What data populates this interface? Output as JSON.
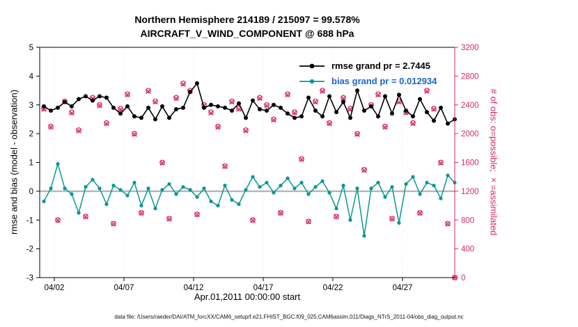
{
  "header": {
    "title_line1": "Northern Hemisphere 214189 / 215097 = 99.578%",
    "title_line2": "AIRCRAFT_V_WIND_COMPONENT @ 688 hPa"
  },
  "legend": [
    {
      "label": "rmse grand pr = 2.7445",
      "line_color": "#000000",
      "text_color": "#000000"
    },
    {
      "label": "bias grand pr = 0.012934",
      "line_color": "#0a9696",
      "text_color": "#1a66cc"
    }
  ],
  "footer": {
    "data_file_note": "data file: /Users/raeder/DAI/ATM_forcXX/CAM6_setup/f.e21.FHIST_BGC.f09_025.CAM6assim.011/Diags_NTrS_2011-04/obs_diag_output.nc"
  },
  "chart_data": {
    "type": "line",
    "x_axis": {
      "label": "Apr.01,2011 00:00:00 start",
      "min": -0.05,
      "max": 29.75,
      "tick_positions": [
        1,
        6,
        11,
        16,
        21,
        26
      ],
      "tick_labels": [
        "04/02",
        "04/07",
        "04/12",
        "04/17",
        "04/22",
        "04/27"
      ]
    },
    "left_axis": {
      "label": "rmse and bias (model - observation)",
      "min": -3,
      "max": 5,
      "ticks": [
        5,
        4,
        3,
        2,
        1,
        0,
        -1,
        -2,
        -3
      ],
      "color": "#000000"
    },
    "right_axis": {
      "label": "# of obs: o=possible; ×=assimilated",
      "min": 0,
      "max": 3200,
      "ticks": [
        3200,
        2800,
        2400,
        2000,
        1600,
        1200,
        800,
        400,
        0
      ],
      "color": "#d6286a"
    },
    "zero_line_color": "#b8b8b8",
    "grid_color": "#e5e5e5",
    "x_days_since_apr1": [
      0.25,
      0.75,
      1.25,
      1.75,
      2.25,
      2.75,
      3.25,
      3.75,
      4.25,
      4.75,
      5.25,
      5.75,
      6.25,
      6.75,
      7.25,
      7.75,
      8.25,
      8.75,
      9.25,
      9.75,
      10.25,
      10.75,
      11.25,
      11.75,
      12.25,
      12.75,
      13.25,
      13.75,
      14.25,
      14.75,
      15.25,
      15.75,
      16.25,
      16.75,
      17.25,
      17.75,
      18.25,
      18.75,
      19.25,
      19.75,
      20.25,
      20.75,
      21.25,
      21.75,
      22.25,
      22.75,
      23.25,
      23.75,
      24.25,
      24.75,
      25.25,
      25.75,
      26.25,
      26.75,
      27.25,
      27.75,
      28.25,
      28.75,
      29.25,
      29.75
    ],
    "series": [
      {
        "name": "rmse",
        "axis": "left",
        "style": "line+marker",
        "color": "#000000",
        "values": [
          2.95,
          2.8,
          2.9,
          3.1,
          2.95,
          3.2,
          3.3,
          3.15,
          3.3,
          3.25,
          2.9,
          2.7,
          2.95,
          2.6,
          2.55,
          2.9,
          2.5,
          2.95,
          2.55,
          2.85,
          2.9,
          3.45,
          3.75,
          2.9,
          3.0,
          2.95,
          2.9,
          2.8,
          3.05,
          2.55,
          3.15,
          2.85,
          2.8,
          3.0,
          2.9,
          2.7,
          2.55,
          2.6,
          3.25,
          2.8,
          2.6,
          3.3,
          2.75,
          3.1,
          2.55,
          3.5,
          2.8,
          2.95,
          2.6,
          3.3,
          2.7,
          3.35,
          2.8,
          2.6,
          3.2,
          2.75,
          2.45,
          2.9,
          2.35,
          2.5
        ]
      },
      {
        "name": "bias",
        "axis": "left",
        "style": "line+marker",
        "color": "#0a9696",
        "values": [
          -0.35,
          0.1,
          0.95,
          0.1,
          -0.1,
          -0.75,
          0.15,
          0.4,
          0.1,
          -0.45,
          0.2,
          0.05,
          -0.15,
          0.3,
          -0.5,
          0.1,
          -0.6,
          0.05,
          0.25,
          -0.1,
          0.15,
          0.05,
          -0.2,
          0.1,
          -0.35,
          -0.5,
          0.2,
          -0.3,
          -0.45,
          0.05,
          0.5,
          0.15,
          0.3,
          -0.05,
          0.2,
          0.45,
          0.1,
          0.3,
          -0.1,
          0.15,
          0.35,
          -0.05,
          -0.6,
          0.2,
          -1.0,
          0.1,
          -1.55,
          0.1,
          0.3,
          -0.2,
          0.15,
          -1.1,
          0.25,
          0.5,
          -0.1,
          0.3,
          0.2,
          -0.25,
          0.55,
          0.3
        ]
      },
      {
        "name": "possible",
        "axis": "right",
        "style": "scatter-circle",
        "color": "#d6286a",
        "values": [
          2350,
          2100,
          800,
          2450,
          2300,
          2050,
          850,
          2500,
          2400,
          2150,
          750,
          2350,
          2550,
          2000,
          900,
          2600,
          2450,
          1600,
          820,
          2500,
          2700,
          2600,
          880,
          2400,
          2300,
          2100,
          1550,
          2450,
          2350,
          2050,
          800,
          2500,
          2400,
          2200,
          900,
          2550,
          2300,
          1650,
          780,
          2450,
          2600,
          2150,
          850,
          2500,
          2350,
          2000,
          1500,
          2400,
          2550,
          2100,
          820,
          2450,
          2300,
          2150,
          900,
          2600,
          2350,
          1600,
          750,
          0
        ]
      },
      {
        "name": "assimilated",
        "axis": "right",
        "style": "scatter-x",
        "color": "#d6286a",
        "values": [
          2340,
          2092,
          795,
          2441,
          2288,
          2040,
          846,
          2490,
          2391,
          2139,
          747,
          2338,
          2541,
          1992,
          895,
          2588,
          2440,
          1593,
          816,
          2489,
          2688,
          2590,
          876,
          2391,
          2289,
          2090,
          1544,
          2440,
          2341,
          2041,
          796,
          2490,
          2389,
          2190,
          896,
          2540,
          2291,
          1642,
          777,
          2440,
          2590,
          2141,
          846,
          2490,
          2340,
          1991,
          1494,
          2390,
          2540,
          2091,
          816,
          2440,
          2290,
          2141,
          896,
          2590,
          2340,
          1593,
          747,
          0
        ]
      }
    ]
  }
}
